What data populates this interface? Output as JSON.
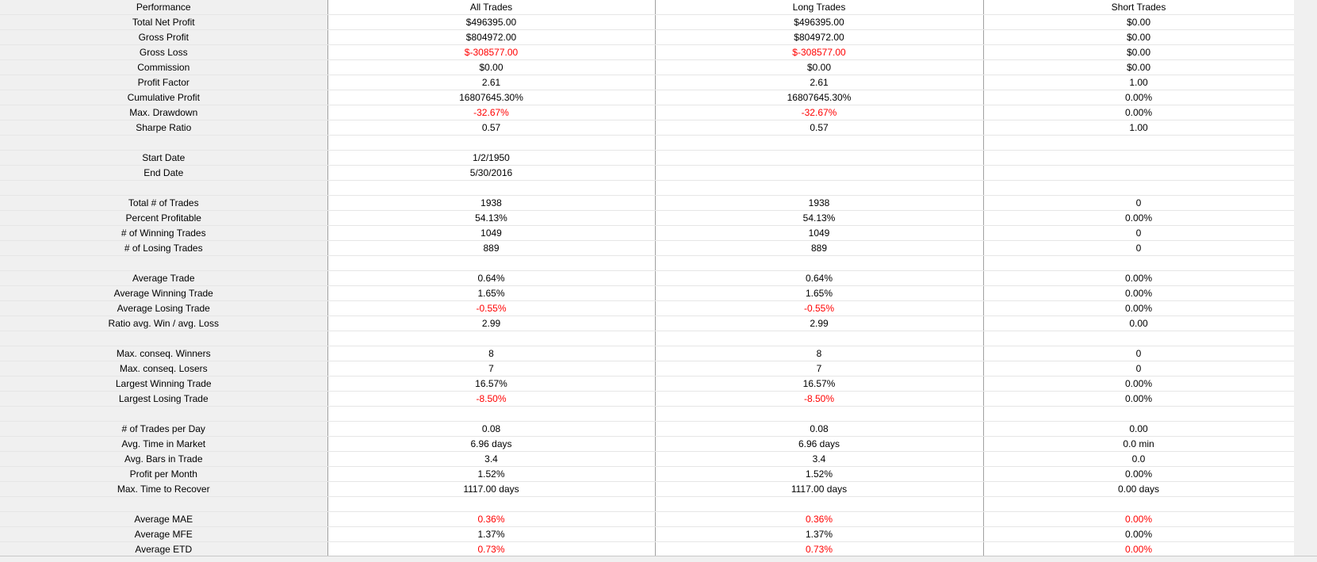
{
  "headers": [
    "Performance",
    "All Trades",
    "Long Trades",
    "Short Trades"
  ],
  "rows": [
    {
      "label": "Total Net Profit",
      "values": [
        "$496395.00",
        "$496395.00",
        "$0.00"
      ],
      "neg": [
        false,
        false,
        false
      ]
    },
    {
      "label": "Gross Profit",
      "values": [
        "$804972.00",
        "$804972.00",
        "$0.00"
      ],
      "neg": [
        false,
        false,
        false
      ]
    },
    {
      "label": "Gross Loss",
      "values": [
        "$-308577.00",
        "$-308577.00",
        "$0.00"
      ],
      "neg": [
        true,
        true,
        false
      ]
    },
    {
      "label": "Commission",
      "values": [
        "$0.00",
        "$0.00",
        "$0.00"
      ],
      "neg": [
        false,
        false,
        false
      ]
    },
    {
      "label": "Profit Factor",
      "values": [
        "2.61",
        "2.61",
        "1.00"
      ],
      "neg": [
        false,
        false,
        false
      ]
    },
    {
      "label": "Cumulative Profit",
      "values": [
        "16807645.30%",
        "16807645.30%",
        "0.00%"
      ],
      "neg": [
        false,
        false,
        false
      ]
    },
    {
      "label": "Max. Drawdown",
      "values": [
        "-32.67%",
        "-32.67%",
        "0.00%"
      ],
      "neg": [
        true,
        true,
        false
      ]
    },
    {
      "label": "Sharpe Ratio",
      "values": [
        "0.57",
        "0.57",
        "1.00"
      ],
      "neg": [
        false,
        false,
        false
      ]
    },
    {
      "label": "",
      "values": [
        "",
        "",
        ""
      ],
      "neg": [
        false,
        false,
        false
      ]
    },
    {
      "label": "Start Date",
      "values": [
        "1/2/1950",
        "",
        ""
      ],
      "neg": [
        false,
        false,
        false
      ]
    },
    {
      "label": "End Date",
      "values": [
        "5/30/2016",
        "",
        ""
      ],
      "neg": [
        false,
        false,
        false
      ]
    },
    {
      "label": "",
      "values": [
        "",
        "",
        ""
      ],
      "neg": [
        false,
        false,
        false
      ]
    },
    {
      "label": "Total # of Trades",
      "values": [
        "1938",
        "1938",
        "0"
      ],
      "neg": [
        false,
        false,
        false
      ]
    },
    {
      "label": "Percent Profitable",
      "values": [
        "54.13%",
        "54.13%",
        "0.00%"
      ],
      "neg": [
        false,
        false,
        false
      ]
    },
    {
      "label": "# of Winning Trades",
      "values": [
        "1049",
        "1049",
        "0"
      ],
      "neg": [
        false,
        false,
        false
      ]
    },
    {
      "label": "# of Losing Trades",
      "values": [
        "889",
        "889",
        "0"
      ],
      "neg": [
        false,
        false,
        false
      ]
    },
    {
      "label": "",
      "values": [
        "",
        "",
        ""
      ],
      "neg": [
        false,
        false,
        false
      ]
    },
    {
      "label": "Average Trade",
      "values": [
        "0.64%",
        "0.64%",
        "0.00%"
      ],
      "neg": [
        false,
        false,
        false
      ]
    },
    {
      "label": "Average Winning Trade",
      "values": [
        "1.65%",
        "1.65%",
        "0.00%"
      ],
      "neg": [
        false,
        false,
        false
      ]
    },
    {
      "label": "Average Losing Trade",
      "values": [
        "-0.55%",
        "-0.55%",
        "0.00%"
      ],
      "neg": [
        true,
        true,
        false
      ]
    },
    {
      "label": "Ratio avg. Win / avg. Loss",
      "values": [
        "2.99",
        "2.99",
        "0.00"
      ],
      "neg": [
        false,
        false,
        false
      ]
    },
    {
      "label": "",
      "values": [
        "",
        "",
        ""
      ],
      "neg": [
        false,
        false,
        false
      ]
    },
    {
      "label": "Max. conseq. Winners",
      "values": [
        "8",
        "8",
        "0"
      ],
      "neg": [
        false,
        false,
        false
      ]
    },
    {
      "label": "Max. conseq. Losers",
      "values": [
        "7",
        "7",
        "0"
      ],
      "neg": [
        false,
        false,
        false
      ]
    },
    {
      "label": "Largest Winning Trade",
      "values": [
        "16.57%",
        "16.57%",
        "0.00%"
      ],
      "neg": [
        false,
        false,
        false
      ]
    },
    {
      "label": "Largest Losing Trade",
      "values": [
        "-8.50%",
        "-8.50%",
        "0.00%"
      ],
      "neg": [
        true,
        true,
        false
      ]
    },
    {
      "label": "",
      "values": [
        "",
        "",
        ""
      ],
      "neg": [
        false,
        false,
        false
      ]
    },
    {
      "label": "# of Trades per Day",
      "values": [
        "0.08",
        "0.08",
        "0.00"
      ],
      "neg": [
        false,
        false,
        false
      ]
    },
    {
      "label": "Avg. Time in Market",
      "values": [
        "6.96 days",
        "6.96 days",
        "0.0 min"
      ],
      "neg": [
        false,
        false,
        false
      ]
    },
    {
      "label": "Avg. Bars in Trade",
      "values": [
        "3.4",
        "3.4",
        "0.0"
      ],
      "neg": [
        false,
        false,
        false
      ]
    },
    {
      "label": "Profit per Month",
      "values": [
        "1.52%",
        "1.52%",
        "0.00%"
      ],
      "neg": [
        false,
        false,
        false
      ]
    },
    {
      "label": "Max. Time to Recover",
      "values": [
        "1117.00 days",
        "1117.00 days",
        "0.00 days"
      ],
      "neg": [
        false,
        false,
        false
      ]
    },
    {
      "label": "",
      "values": [
        "",
        "",
        ""
      ],
      "neg": [
        false,
        false,
        false
      ]
    },
    {
      "label": "Average MAE",
      "values": [
        "0.36%",
        "0.36%",
        "0.00%"
      ],
      "neg": [
        true,
        true,
        true
      ]
    },
    {
      "label": "Average MFE",
      "values": [
        "1.37%",
        "1.37%",
        "0.00%"
      ],
      "neg": [
        false,
        false,
        false
      ]
    },
    {
      "label": "Average ETD",
      "values": [
        "0.73%",
        "0.73%",
        "0.00%"
      ],
      "neg": [
        true,
        true,
        true
      ]
    }
  ],
  "colors": {
    "negative": "#ff0000",
    "label_bg": "#f0f0f0",
    "grid_line": "#a0a0a0"
  }
}
